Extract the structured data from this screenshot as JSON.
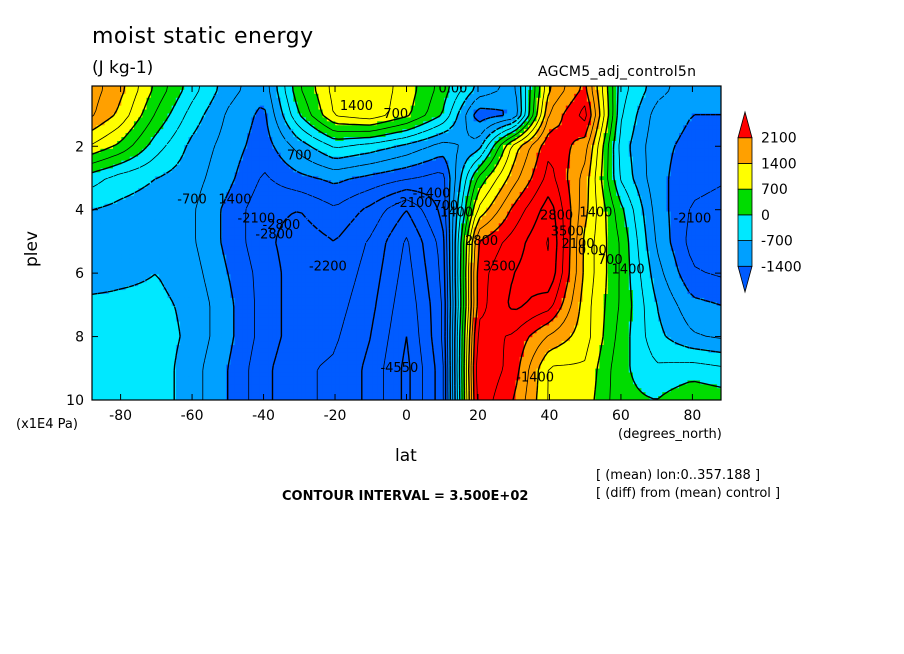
{
  "header": {
    "title": "moist static energy",
    "units": "(J kg-1)",
    "run_name": "AGCM5_adj_control5n"
  },
  "footer": {
    "contour_interval": "CONTOUR INTERVAL = 3.500E+02",
    "mean_note": "[ (mean) lon:0..357.188 ]",
    "diff_note": "[ (diff) from (mean) control ]"
  },
  "chart_data": {
    "type": "heatmap",
    "title": "moist static energy",
    "units": "(J kg-1)",
    "xlabel": "lat",
    "xunits": "(degrees_north)",
    "ylabel": "plev",
    "yunits": "(x1E4 Pa)",
    "xlim": [
      -88,
      88
    ],
    "ylim": [
      0.1,
      10
    ],
    "y_inverted": true,
    "x_ticks": [
      -80,
      -60,
      -40,
      -20,
      0,
      20,
      40,
      60,
      80
    ],
    "y_ticks": [
      2,
      4,
      6,
      8,
      10
    ],
    "contour_interval": 350,
    "colorbar": {
      "levels": [
        -1400,
        -700,
        0,
        700,
        1400,
        2100
      ],
      "level_labels": [
        "-1400",
        "-700",
        "0",
        "700",
        "1400",
        "2100"
      ],
      "colors": [
        "#005bff",
        "#00a0ff",
        "#00e8ff",
        "#00dc00",
        "#ffff00",
        "#ffa000",
        "#ff0000"
      ]
    },
    "x": [
      -88,
      -80,
      -70,
      -60,
      -50,
      -40,
      -30,
      -20,
      -10,
      0,
      10,
      20,
      30,
      40,
      50,
      60,
      70,
      80,
      88
    ],
    "y": [
      0.2,
      1,
      2,
      3,
      4,
      5,
      6,
      7,
      8,
      9,
      10
    ],
    "z": [
      [
        1900,
        1500,
        600,
        -200,
        -900,
        -1300,
        300,
        1200,
        1300,
        900,
        200,
        -800,
        -1200,
        1400,
        2200,
        -200,
        -900,
        -1300,
        -1300
      ],
      [
        1800,
        1300,
        300,
        -500,
        -1100,
        -1500,
        0,
        1100,
        1300,
        800,
        0,
        -1600,
        -1400,
        1800,
        2600,
        -300,
        -1200,
        -1400,
        -1400
      ],
      [
        1000,
        600,
        -200,
        -800,
        -1200,
        -1600,
        -900,
        -300,
        -500,
        -800,
        -1200,
        -900,
        1200,
        2400,
        1900,
        -500,
        -1300,
        -1500,
        -1500
      ],
      [
        -200,
        -500,
        -700,
        -900,
        -1300,
        -1800,
        -1500,
        -1300,
        -1500,
        -1700,
        -1900,
        400,
        1600,
        2600,
        1600,
        -400,
        -1300,
        -1600,
        -1700
      ],
      [
        -700,
        -800,
        -900,
        -1000,
        -1500,
        -2000,
        -2100,
        -1800,
        -2200,
        -2800,
        -2000,
        1100,
        2200,
        3000,
        1500,
        100,
        -1200,
        -1800,
        -1900
      ],
      [
        -1000,
        -900,
        -800,
        -1000,
        -1500,
        -2000,
        -2300,
        -2100,
        -2500,
        -3200,
        -2300,
        2100,
        2600,
        3200,
        1300,
        300,
        -1100,
        -1900,
        -2000
      ],
      [
        -900,
        -800,
        -700,
        -900,
        -1400,
        -1900,
        -2300,
        -2200,
        -2600,
        -3300,
        -2400,
        2300,
        2800,
        3100,
        1300,
        300,
        -900,
        -1700,
        -1800
      ],
      [
        -600,
        -600,
        -600,
        -800,
        -1300,
        -1900,
        -2300,
        -2300,
        -2700,
        -3400,
        -2500,
        2300,
        2900,
        2600,
        1200,
        300,
        -700,
        -1300,
        -1400
      ],
      [
        -500,
        -500,
        -500,
        -800,
        -1300,
        -1900,
        -2300,
        -2400,
        -2800,
        -3500,
        -2500,
        2600,
        2400,
        1700,
        1200,
        200,
        -600,
        -1000,
        -1100
      ],
      [
        -400,
        -500,
        -500,
        -900,
        -1400,
        -2000,
        -2400,
        -2500,
        -2900,
        -3600,
        -2600,
        2800,
        2300,
        1000,
        1000,
        100,
        -300,
        -200,
        -300
      ],
      [
        -400,
        -500,
        -500,
        -900,
        -1400,
        -2000,
        -2400,
        -2500,
        -2900,
        -3600,
        -2600,
        2700,
        2100,
        1000,
        900,
        100,
        0,
        300,
        200
      ]
    ],
    "contour_labels": [
      {
        "text": "0.00",
        "lat": 13,
        "plev": 0.2
      },
      {
        "text": "1400",
        "lat": -14,
        "plev": 0.75
      },
      {
        "text": "700",
        "lat": -3,
        "plev": 1.0
      },
      {
        "text": "700",
        "lat": -30,
        "plev": 2.3
      },
      {
        "text": "-700",
        "lat": -60,
        "plev": 3.7
      },
      {
        "text": "1400",
        "lat": -48,
        "plev": 3.7
      },
      {
        "text": "-2100",
        "lat": -42,
        "plev": 4.3
      },
      {
        "text": "-2800",
        "lat": -35,
        "plev": 4.5
      },
      {
        "text": "-2800",
        "lat": -37,
        "plev": 4.8
      },
      {
        "text": "-2200",
        "lat": -22,
        "plev": 5.8
      },
      {
        "text": "-2100",
        "lat": 2,
        "plev": 3.8
      },
      {
        "text": "-1400",
        "lat": 7,
        "plev": 3.5
      },
      {
        "text": "-4550",
        "lat": -2,
        "plev": 9.0
      },
      {
        "text": "700",
        "lat": 11,
        "plev": 3.9
      },
      {
        "text": "1400",
        "lat": 14,
        "plev": 4.1
      },
      {
        "text": "2800",
        "lat": 21,
        "plev": 5.0
      },
      {
        "text": "3500",
        "lat": 26,
        "plev": 5.8
      },
      {
        "text": "2800",
        "lat": 42,
        "plev": 4.2
      },
      {
        "text": "3500",
        "lat": 45,
        "plev": 4.7
      },
      {
        "text": "2100",
        "lat": 48,
        "plev": 5.1
      },
      {
        "text": "1400",
        "lat": 53,
        "plev": 4.1
      },
      {
        "text": "0.00",
        "lat": 52,
        "plev": 5.3
      },
      {
        "text": "700",
        "lat": 57,
        "plev": 5.6
      },
      {
        "text": "1400",
        "lat": 62,
        "plev": 5.9
      },
      {
        "text": "-2100",
        "lat": 80,
        "plev": 4.3
      },
      {
        "text": "-1400",
        "lat": 36,
        "plev": 9.3
      }
    ]
  }
}
